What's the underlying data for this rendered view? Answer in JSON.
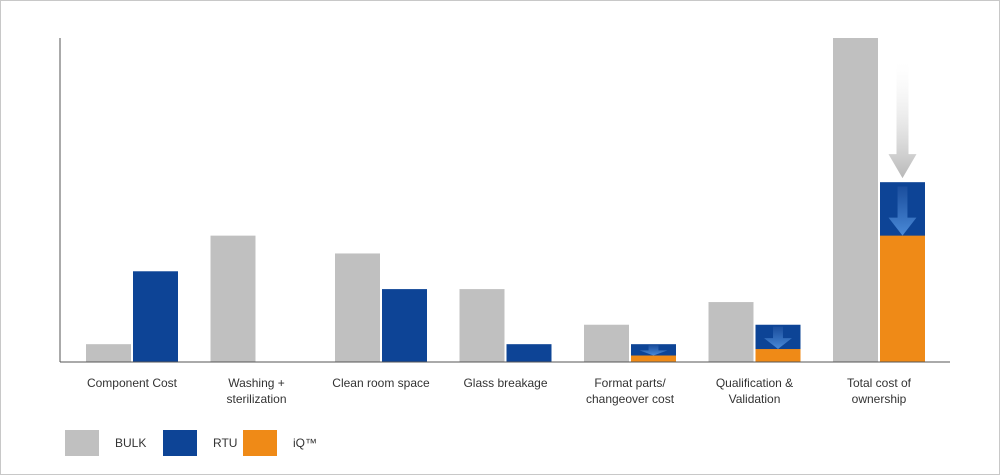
{
  "chart_data": {
    "type": "bar",
    "categories": [
      "Component Cost",
      "Washing +\nsterilization",
      "Clean room space",
      "Glass breakage",
      "Format parts/\nchangeover cost",
      "Qualification &\nValidation",
      "Total cost of\nownership"
    ],
    "ylim": [
      0,
      100
    ],
    "grid": false,
    "legend_position": "bottom-left",
    "colors": {
      "bulk": "#c0c0c0",
      "rtu": "#0d4496",
      "iq": "#ef8a17",
      "arrow": "#2f6fc6"
    },
    "series": [
      {
        "name": "BULK",
        "key": "bulk",
        "values": [
          5.5,
          39,
          33.5,
          22.5,
          11.5,
          18.5,
          100
        ]
      },
      {
        "name": "RTU",
        "key": "rtu",
        "values": [
          28,
          0,
          22.5,
          5.5,
          5.5,
          11.5,
          55.5
        ]
      },
      {
        "name": "iQ™",
        "key": "iq",
        "values": [
          0,
          0,
          0,
          0,
          2,
          4,
          39
        ]
      }
    ],
    "reduction_arrows": [
      4,
      5,
      6
    ],
    "total_comparison_arrow": 6
  }
}
